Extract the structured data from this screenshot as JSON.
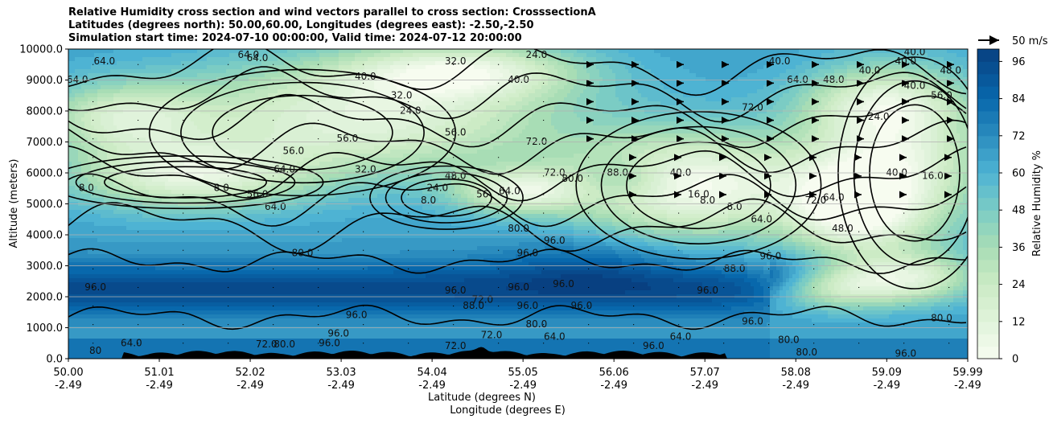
{
  "titles": {
    "line1": "Relative Humidity cross section and wind vectors parallel to cross section: CrosssectionA",
    "line2": "Latitudes (degrees north): 50.00,60.00, Longitudes (degrees east): -2.50,-2.50",
    "line3": "Simulation start time: 2024-07-10 00:00:00, Valid time: 2024-07-12 20:00:00"
  },
  "chart_data": {
    "type": "heatmap",
    "subtype": "filled contour cross-section with line contours and wind vectors",
    "ylabel": "Altitude (meters)",
    "xlabel_line1": "Latitude (degrees N)",
    "xlabel_line2": "Longitude (degrees E)",
    "ylim": [
      0,
      10000
    ],
    "y_ticks": [
      "0.0",
      "1000.0",
      "2000.0",
      "3000.0",
      "4000.0",
      "5000.0",
      "6000.0",
      "7000.0",
      "8000.0",
      "9000.0",
      "10000.0"
    ],
    "x_ticks_lat": [
      "50.00",
      "51.01",
      "52.02",
      "53.03",
      "54.04",
      "55.05",
      "56.06",
      "57.07",
      "58.08",
      "59.09",
      "59.99"
    ],
    "x_ticks_lon": [
      "-2.49",
      "-2.49",
      "-2.49",
      "-2.49",
      "-2.49",
      "-2.49",
      "-2.49",
      "-2.49",
      "-2.49",
      "-2.49",
      "-2.49"
    ],
    "grid": "horizontal lines",
    "colorbar": {
      "label": "Relative Humidity %",
      "range": [
        0,
        100
      ],
      "ticks": [
        "0",
        "12",
        "24",
        "36",
        "48",
        "60",
        "72",
        "84",
        "96"
      ],
      "colormap": "GnBu",
      "low_color": "#f7fcf0",
      "high_color": "#084081"
    },
    "wind_key": {
      "label": "50 m/s"
    },
    "contour_labels": [
      {
        "lat": 50.2,
        "alt": 5500,
        "text": "8.0"
      },
      {
        "lat": 50.1,
        "alt": 9000,
        "text": "64.0"
      },
      {
        "lat": 50.4,
        "alt": 9600,
        "text": "64.0"
      },
      {
        "lat": 50.3,
        "alt": 2300,
        "text": "96.0"
      },
      {
        "lat": 50.7,
        "alt": 500,
        "text": "64.0"
      },
      {
        "lat": 50.3,
        "alt": 250,
        "text": "80"
      },
      {
        "lat": 51.7,
        "alt": 5500,
        "text": "8.0"
      },
      {
        "lat": 52.1,
        "alt": 5300,
        "text": "56.0"
      },
      {
        "lat": 52.3,
        "alt": 4900,
        "text": "64.0"
      },
      {
        "lat": 52.4,
        "alt": 6100,
        "text": "64.0"
      },
      {
        "lat": 52.5,
        "alt": 6700,
        "text": "56.0"
      },
      {
        "lat": 52.0,
        "alt": 9800,
        "text": "64.0"
      },
      {
        "lat": 52.1,
        "alt": 9700,
        "text": "64.0"
      },
      {
        "lat": 52.6,
        "alt": 3400,
        "text": "80.0"
      },
      {
        "lat": 53.1,
        "alt": 7100,
        "text": "56.0"
      },
      {
        "lat": 53.3,
        "alt": 6100,
        "text": "32.0"
      },
      {
        "lat": 53.3,
        "alt": 9100,
        "text": "40.0"
      },
      {
        "lat": 53.2,
        "alt": 1400,
        "text": "96.0"
      },
      {
        "lat": 53.0,
        "alt": 800,
        "text": "96.0"
      },
      {
        "lat": 52.9,
        "alt": 500,
        "text": "96.0"
      },
      {
        "lat": 52.2,
        "alt": 450,
        "text": "72.0"
      },
      {
        "lat": 52.4,
        "alt": 450,
        "text": "80.0"
      },
      {
        "lat": 53.8,
        "alt": 8000,
        "text": "24.0"
      },
      {
        "lat": 53.7,
        "alt": 8500,
        "text": "32.0"
      },
      {
        "lat": 54.3,
        "alt": 9600,
        "text": "32.0"
      },
      {
        "lat": 54.0,
        "alt": 5100,
        "text": "8.0"
      },
      {
        "lat": 54.1,
        "alt": 5500,
        "text": "24.0"
      },
      {
        "lat": 54.3,
        "alt": 5900,
        "text": "48.0"
      },
      {
        "lat": 54.3,
        "alt": 7300,
        "text": "56.0"
      },
      {
        "lat": 54.6,
        "alt": 5300,
        "text": "56"
      },
      {
        "lat": 54.9,
        "alt": 5400,
        "text": "64.0"
      },
      {
        "lat": 55.0,
        "alt": 9000,
        "text": "40.0"
      },
      {
        "lat": 55.2,
        "alt": 9800,
        "text": "24.0"
      },
      {
        "lat": 55.2,
        "alt": 7000,
        "text": "72.0"
      },
      {
        "lat": 55.4,
        "alt": 6000,
        "text": "72.0"
      },
      {
        "lat": 55.6,
        "alt": 5800,
        "text": "80.0"
      },
      {
        "lat": 56.1,
        "alt": 6000,
        "text": "88.0"
      },
      {
        "lat": 55.0,
        "alt": 4200,
        "text": "80.0"
      },
      {
        "lat": 55.1,
        "alt": 3400,
        "text": "96.0"
      },
      {
        "lat": 55.4,
        "alt": 3800,
        "text": "96.0"
      },
      {
        "lat": 55.0,
        "alt": 2300,
        "text": "96.0"
      },
      {
        "lat": 55.1,
        "alt": 1700,
        "text": "96.0"
      },
      {
        "lat": 55.5,
        "alt": 2400,
        "text": "96.0"
      },
      {
        "lat": 55.7,
        "alt": 1700,
        "text": "96.0"
      },
      {
        "lat": 54.6,
        "alt": 1900,
        "text": "72.0"
      },
      {
        "lat": 54.3,
        "alt": 2200,
        "text": "96.0"
      },
      {
        "lat": 54.5,
        "alt": 1700,
        "text": "88.0"
      },
      {
        "lat": 55.2,
        "alt": 1100,
        "text": "80.0"
      },
      {
        "lat": 54.7,
        "alt": 750,
        "text": "72.0"
      },
      {
        "lat": 55.4,
        "alt": 700,
        "text": "64.0"
      },
      {
        "lat": 54.3,
        "alt": 400,
        "text": "72.0"
      },
      {
        "lat": 56.8,
        "alt": 700,
        "text": "64.0"
      },
      {
        "lat": 56.5,
        "alt": 400,
        "text": "96.0"
      },
      {
        "lat": 56.8,
        "alt": 6000,
        "text": "40.0"
      },
      {
        "lat": 57.0,
        "alt": 5300,
        "text": "16.0"
      },
      {
        "lat": 57.1,
        "alt": 5100,
        "text": "8.0"
      },
      {
        "lat": 57.4,
        "alt": 4900,
        "text": "8.0"
      },
      {
        "lat": 57.6,
        "alt": 8100,
        "text": "72.0"
      },
      {
        "lat": 57.9,
        "alt": 9600,
        "text": "40.0"
      },
      {
        "lat": 58.1,
        "alt": 9000,
        "text": "64.0"
      },
      {
        "lat": 58.5,
        "alt": 9000,
        "text": "48.0"
      },
      {
        "lat": 57.4,
        "alt": 2900,
        "text": "88.0"
      },
      {
        "lat": 57.1,
        "alt": 2200,
        "text": "96.0"
      },
      {
        "lat": 57.8,
        "alt": 3300,
        "text": "96.0"
      },
      {
        "lat": 57.7,
        "alt": 4500,
        "text": "64.0"
      },
      {
        "lat": 58.3,
        "alt": 5100,
        "text": "72.0"
      },
      {
        "lat": 58.5,
        "alt": 5200,
        "text": "64.0"
      },
      {
        "lat": 58.6,
        "alt": 4200,
        "text": "48.0"
      },
      {
        "lat": 57.6,
        "alt": 1200,
        "text": "96.0"
      },
      {
        "lat": 58.0,
        "alt": 600,
        "text": "80.0"
      },
      {
        "lat": 58.2,
        "alt": 200,
        "text": "80.0"
      },
      {
        "lat": 58.9,
        "alt": 9300,
        "text": "40.0"
      },
      {
        "lat": 59.0,
        "alt": 7800,
        "text": "24.0"
      },
      {
        "lat": 59.2,
        "alt": 6000,
        "text": "40.0"
      },
      {
        "lat": 59.4,
        "alt": 8800,
        "text": "40.0"
      },
      {
        "lat": 59.3,
        "alt": 9600,
        "text": "40.0"
      },
      {
        "lat": 59.4,
        "alt": 9900,
        "text": "40.0"
      },
      {
        "lat": 59.7,
        "alt": 8500,
        "text": "56.0"
      },
      {
        "lat": 59.8,
        "alt": 9300,
        "text": "48.0"
      },
      {
        "lat": 59.6,
        "alt": 5900,
        "text": "16.0"
      },
      {
        "lat": 59.3,
        "alt": 150,
        "text": "96.0"
      },
      {
        "lat": 59.7,
        "alt": 1300,
        "text": "80.0"
      }
    ]
  }
}
